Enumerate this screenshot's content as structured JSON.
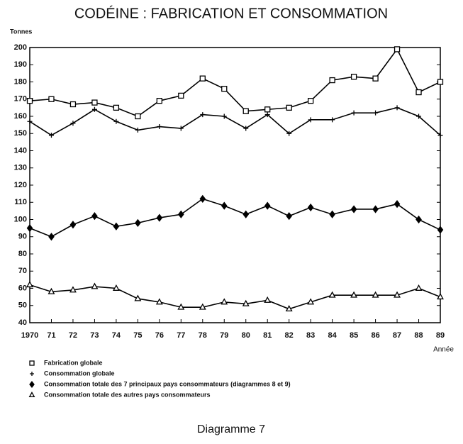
{
  "chart_data": {
    "type": "line",
    "title": "CODÉINE : FABRICATION ET CONSOMMATION",
    "y_label": "Tonnes",
    "x_label": "Année",
    "caption": "Diagramme 7",
    "categories": [
      "1970",
      "71",
      "72",
      "73",
      "74",
      "75",
      "76",
      "77",
      "78",
      "79",
      "80",
      "81",
      "82",
      "83",
      "84",
      "85",
      "86",
      "87",
      "88",
      "89"
    ],
    "series": [
      {
        "name": "Fabrication globale",
        "color": "#000000",
        "marker": "square",
        "values": [
          169,
          170,
          167,
          168,
          165,
          160,
          169,
          172,
          182,
          176,
          163,
          164,
          165,
          169,
          181,
          183,
          182,
          199,
          174,
          180
        ]
      },
      {
        "name": "Consommation globale",
        "color": "#000000",
        "marker": "plus",
        "values": [
          157,
          149,
          156,
          164,
          157,
          152,
          154,
          153,
          161,
          160,
          153,
          161,
          150,
          158,
          158,
          162,
          162,
          165,
          160,
          149
        ]
      },
      {
        "name": "Consommation totale des 7 principaux pays consommateurs (diagrammes 8 et 9)",
        "color": "#000000",
        "marker": "diamond",
        "values": [
          95,
          90,
          97,
          102,
          96,
          98,
          101,
          103,
          112,
          108,
          103,
          108,
          102,
          107,
          103,
          106,
          106,
          109,
          100,
          94
        ]
      },
      {
        "name": "Consommation totale des autres pays consommateurs",
        "color": "#000000",
        "marker": "triangle",
        "values": [
          62,
          58,
          59,
          61,
          60,
          54,
          52,
          49,
          49,
          52,
          51,
          53,
          48,
          52,
          56,
          56,
          56,
          56,
          60,
          55
        ]
      }
    ],
    "ylim": [
      40,
      200
    ],
    "yticks": [
      40,
      50,
      60,
      70,
      80,
      90,
      100,
      110,
      120,
      130,
      140,
      150,
      160,
      170,
      180,
      190,
      200
    ],
    "grid": false
  }
}
